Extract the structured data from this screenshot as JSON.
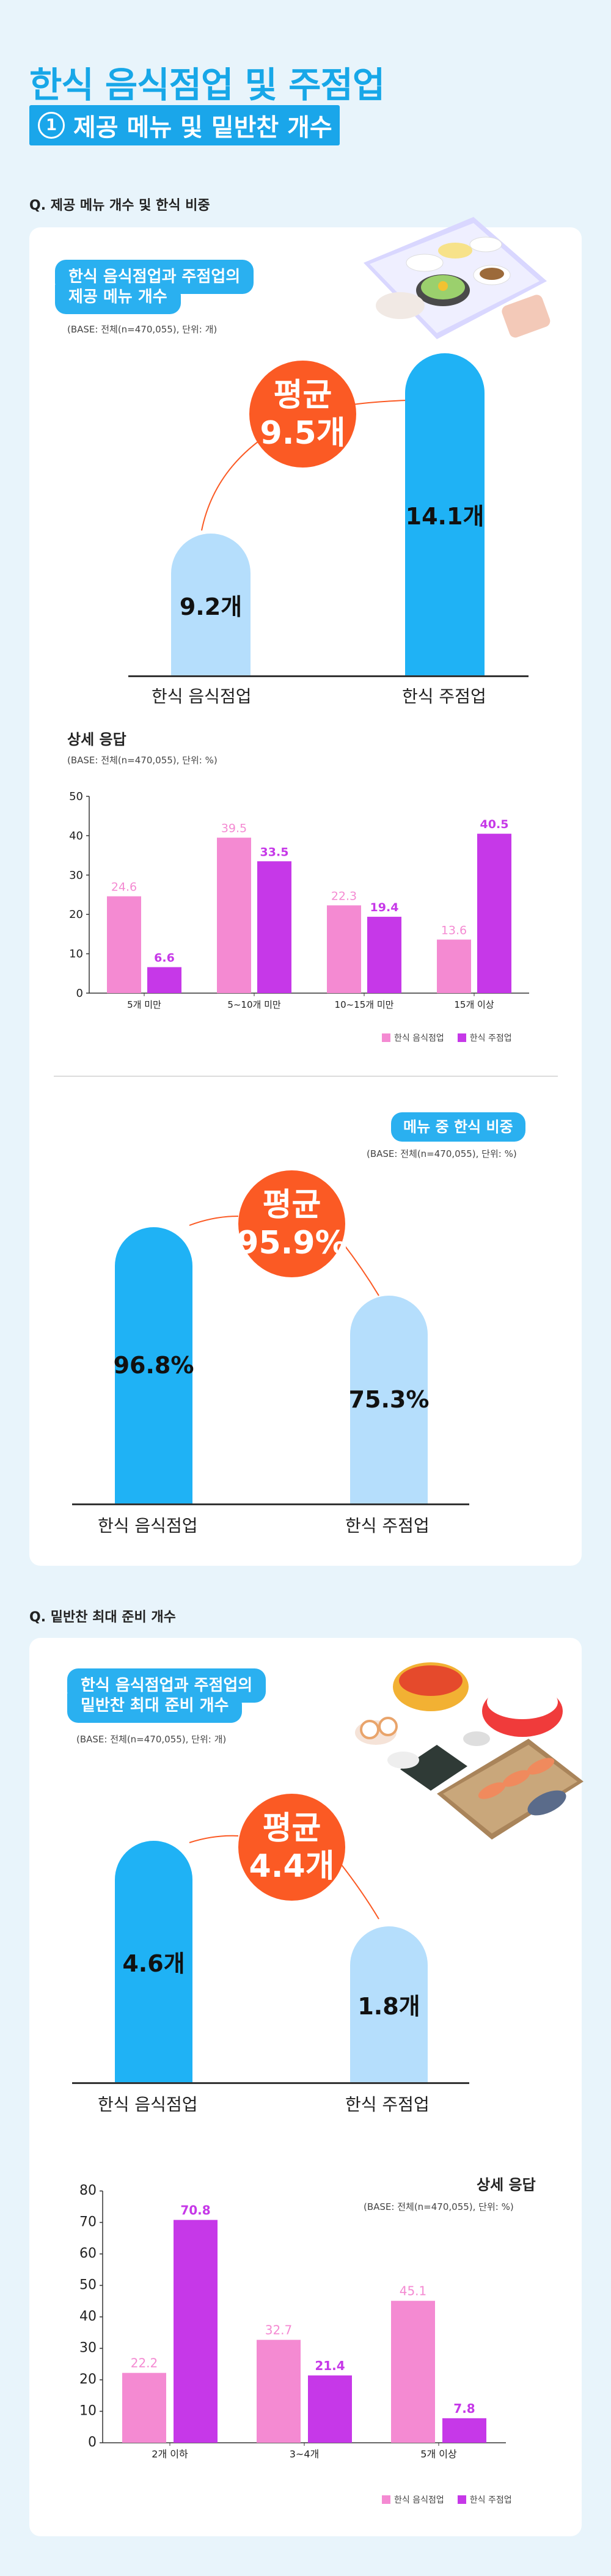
{
  "header": {
    "title": "한식 음식점업 및 주점업",
    "sub_num": "1",
    "sub_title": "제공 메뉴 및 밑반찬 개수"
  },
  "q1": {
    "title": "Q. 제공 메뉴 개수 및 한식 비중",
    "menu_count": {
      "pill_line1": "한식 음식점업과 주점업의",
      "pill_line2": "제공 메뉴 개수",
      "base": "(BASE: 전체(n=470,055), 단위: 개)",
      "avg_label": "평균",
      "avg_value": "9.5개",
      "bars": [
        {
          "category": "한식 음식점업",
          "value": 9.2,
          "label": "9.2개"
        },
        {
          "category": "한식 주점업",
          "value": 14.1,
          "label": "14.1개"
        }
      ]
    },
    "detail": {
      "title": "상세 응답",
      "base": "(BASE: 전체(n=470,055), 단위: %)"
    },
    "ratio": {
      "pill": "메뉴 중 한식 비중",
      "base": "(BASE: 전체(n=470,055), 단위: %)",
      "avg_label": "평균",
      "avg_value": "95.9%",
      "bars": [
        {
          "category": "한식 음식점업",
          "value": 96.8,
          "label": "96.8%"
        },
        {
          "category": "한식 주점업",
          "value": 75.3,
          "label": "75.3%"
        }
      ]
    }
  },
  "q2": {
    "title": "Q. 밑반찬 최대 준비 개수",
    "side_count": {
      "pill_line1": "한식 음식점업과 주점업의",
      "pill_line2": "밑반찬 최대 준비 개수",
      "base": "(BASE: 전체(n=470,055), 단위: 개)",
      "avg_label": "평균",
      "avg_value": "4.4개",
      "bars": [
        {
          "category": "한식 음식점업",
          "value": 4.6,
          "label": "4.6개"
        },
        {
          "category": "한식 주점업",
          "value": 1.8,
          "label": "1.8개"
        }
      ]
    },
    "detail": {
      "title": "상세 응답",
      "base": "(BASE: 전체(n=470,055), 단위: %)"
    }
  },
  "colors": {
    "pink": "#f48ad2",
    "purple": "#c638e8",
    "blue": "#1fb2f5",
    "light_blue": "#b5defc",
    "orange": "#fb5a24"
  },
  "chart_data": [
    {
      "type": "bar",
      "title": "상세 응답",
      "categories": [
        "5개 미만",
        "5~10개 미만",
        "10~15개 미만",
        "15개 이상"
      ],
      "series": [
        {
          "name": "한식 음식점업",
          "values": [
            24.6,
            39.5,
            22.3,
            13.6
          ]
        },
        {
          "name": "한식 주점업",
          "values": [
            6.6,
            33.5,
            19.4,
            40.5
          ]
        }
      ],
      "ylim": [
        0,
        50
      ],
      "yticks": [
        0,
        10,
        20,
        30,
        40,
        50
      ],
      "legend": "bottom-right"
    },
    {
      "type": "bar",
      "title": "상세 응답",
      "categories": [
        "2개 이하",
        "3~4개",
        "5개 이상"
      ],
      "series": [
        {
          "name": "한식 음식점업",
          "values": [
            22.2,
            32.7,
            45.1
          ]
        },
        {
          "name": "한식 주점업",
          "values": [
            70.8,
            21.4,
            7.8
          ]
        }
      ],
      "ylim": [
        0,
        80
      ],
      "yticks": [
        0,
        10,
        20,
        30,
        40,
        50,
        60,
        70,
        80
      ],
      "legend": "bottom-right"
    }
  ]
}
